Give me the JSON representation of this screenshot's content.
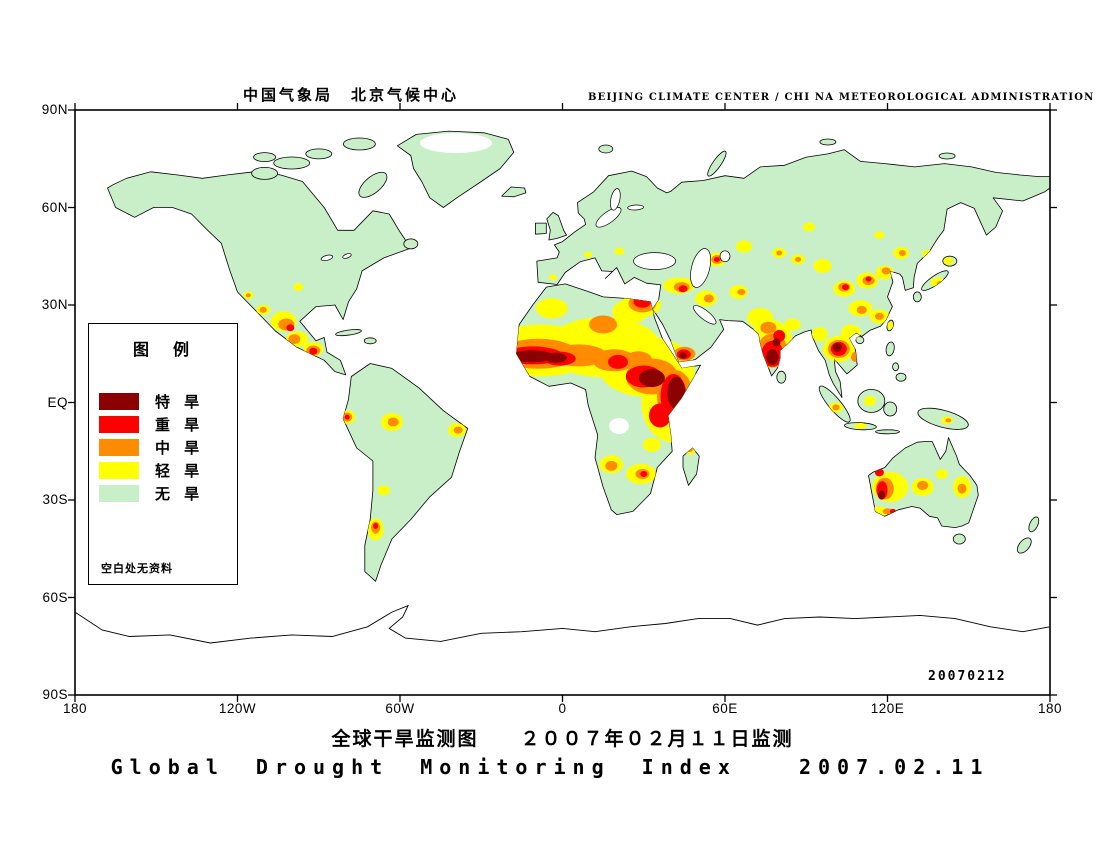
{
  "header": {
    "title_cn": "中国气象局　北京气候中心",
    "title_en": "BEIJING CLIMATE CENTER / CHI NA METEOROLOGICAL ADMINISTRATION"
  },
  "axes": {
    "lat_labels": [
      "90N",
      "60N",
      "30N",
      "EQ",
      "30S",
      "60S",
      "90S"
    ],
    "lon_labels": [
      "180",
      "120W",
      "60W",
      "0",
      "60E",
      "120E",
      "180"
    ]
  },
  "legend": {
    "title": "图　例",
    "items": [
      {
        "label": "特 旱",
        "color": "#8b0000",
        "level": 4
      },
      {
        "label": "重 旱",
        "color": "#ff0000",
        "level": 3
      },
      {
        "label": "中 旱",
        "color": "#ff8c00",
        "level": 2
      },
      {
        "label": "轻 旱",
        "color": "#ffff00",
        "level": 1
      },
      {
        "label": "无 旱",
        "color": "#c9efc9",
        "level": 0
      }
    ],
    "note": "空白处无资料"
  },
  "map": {
    "datestamp": "20070212",
    "ocean_color": "#ffffff",
    "drought_spots": [
      [
        -8,
        16,
        55,
        26,
        1
      ],
      [
        15,
        17,
        58,
        30,
        1
      ],
      [
        31,
        11,
        48,
        30,
        1
      ],
      [
        41,
        0,
        32,
        40,
        1
      ],
      [
        25,
        28,
        18,
        12,
        1
      ],
      [
        -4,
        29,
        16,
        10,
        1
      ],
      [
        29,
        30,
        20,
        12,
        1
      ],
      [
        18,
        -19,
        12,
        9,
        1
      ],
      [
        29,
        -22,
        15,
        10,
        1
      ],
      [
        47,
        -14.5,
        6,
        5,
        1
      ],
      [
        33,
        -13,
        9,
        7,
        1
      ],
      [
        43,
        36,
        16,
        8,
        1
      ],
      [
        53,
        32,
        11,
        8,
        1
      ],
      [
        65,
        34,
        9,
        7,
        1
      ],
      [
        57,
        44,
        9,
        7,
        1
      ],
      [
        67,
        48,
        8,
        6,
        1
      ],
      [
        80,
        46,
        7,
        5,
        1
      ],
      [
        77,
        18,
        22,
        24,
        1
      ],
      [
        73,
        26,
        13,
        10,
        1
      ],
      [
        85,
        24,
        8,
        6,
        1
      ],
      [
        102,
        16.5,
        16,
        13,
        1
      ],
      [
        106.5,
        21.5,
        10,
        8,
        1
      ],
      [
        95,
        21,
        8,
        7,
        1
      ],
      [
        104,
        35,
        11,
        8,
        1
      ],
      [
        112.5,
        37.5,
        11,
        8,
        1
      ],
      [
        119,
        40,
        9,
        7,
        1
      ],
      [
        96,
        42,
        9,
        7,
        1
      ],
      [
        110,
        29,
        12,
        8,
        1
      ],
      [
        117,
        26.5,
        10,
        7,
        1
      ],
      [
        125,
        46,
        8,
        6,
        1
      ],
      [
        87,
        44,
        7,
        5,
        1
      ],
      [
        91,
        54,
        6,
        4.5,
        1
      ],
      [
        135,
        45.5,
        6,
        5,
        1
      ],
      [
        117,
        51.5,
        5,
        4,
        1
      ],
      [
        138.5,
        37,
        7,
        5,
        1
      ],
      [
        142.5,
        43.5,
        5,
        4,
        1
      ],
      [
        121,
        23.7,
        3,
        4,
        1
      ],
      [
        9.5,
        45.5,
        4,
        3,
        1
      ],
      [
        21,
        46.5,
        5,
        3.5,
        1
      ],
      [
        -3.5,
        38.5,
        4,
        3,
        1
      ],
      [
        -103,
        25,
        13,
        10,
        1
      ],
      [
        -98,
        19.5,
        11,
        8,
        1
      ],
      [
        -92,
        16.5,
        10,
        7,
        1
      ],
      [
        -110.5,
        28.5,
        7,
        5,
        1
      ],
      [
        -97.5,
        35.5,
        5,
        4,
        1
      ],
      [
        -116,
        33,
        5,
        4,
        1
      ],
      [
        -79.5,
        -4.5,
        8,
        7,
        1
      ],
      [
        -63,
        -6,
        11,
        9,
        1
      ],
      [
        -39,
        -8.5,
        9,
        7,
        1
      ],
      [
        -69,
        -39,
        8,
        11,
        1
      ],
      [
        -66,
        -27,
        6,
        5,
        1
      ],
      [
        121,
        -26,
        18,
        15,
        1
      ],
      [
        133,
        -26,
        11,
        9,
        1
      ],
      [
        147.5,
        -26,
        9,
        11,
        1
      ],
      [
        117,
        -33.5,
        9,
        5,
        1
      ],
      [
        140,
        -22,
        6,
        5,
        1
      ],
      [
        101,
        -1.5,
        7,
        5,
        1
      ],
      [
        113.5,
        0.5,
        6,
        5,
        1
      ],
      [
        110,
        -7.2,
        6,
        3,
        1
      ],
      [
        142,
        -5.5,
        6,
        4,
        1
      ],
      [
        -9,
        15,
        40,
        15,
        2
      ],
      [
        6,
        14.5,
        28,
        11,
        2
      ],
      [
        19,
        13,
        22,
        11,
        2
      ],
      [
        33,
        8,
        26,
        18,
        2
      ],
      [
        41.5,
        2,
        18,
        26,
        2
      ],
      [
        15,
        24,
        14,
        9,
        2
      ],
      [
        28,
        13,
        14,
        9,
        2
      ],
      [
        29.5,
        30.5,
        14,
        9,
        2
      ],
      [
        45,
        15,
        11,
        7,
        2
      ],
      [
        18,
        -19.5,
        6,
        5,
        2
      ],
      [
        29.5,
        -22,
        7,
        5,
        2
      ],
      [
        47,
        -14.5,
        3,
        2.5,
        2
      ],
      [
        44,
        35.5,
        8,
        5,
        2
      ],
      [
        54,
        32,
        5,
        4,
        2
      ],
      [
        66,
        34,
        4,
        3,
        2
      ],
      [
        57,
        44,
        5.5,
        4.5,
        2
      ],
      [
        80,
        46,
        3,
        2.5,
        2
      ],
      [
        77.5,
        16,
        15,
        17,
        2
      ],
      [
        76,
        23,
        8,
        6,
        2
      ],
      [
        102,
        16.5,
        11,
        9,
        2
      ],
      [
        108,
        14,
        4,
        5,
        2
      ],
      [
        104,
        35.5,
        6,
        4.5,
        2
      ],
      [
        113,
        37.5,
        6,
        4.5,
        2
      ],
      [
        119.5,
        40.5,
        4.5,
        3.5,
        2
      ],
      [
        110.5,
        28.5,
        5,
        4,
        2
      ],
      [
        117,
        26.5,
        4.5,
        3.5,
        2
      ],
      [
        125.5,
        46,
        3.5,
        3,
        2
      ],
      [
        87,
        44,
        3,
        2.5,
        2
      ],
      [
        135.5,
        45.5,
        3,
        2.5,
        2
      ],
      [
        139.5,
        36.5,
        3.5,
        3,
        2
      ],
      [
        -102,
        24,
        8,
        6,
        2
      ],
      [
        -99,
        19.5,
        6,
        5,
        2
      ],
      [
        -92,
        16,
        7,
        5,
        2
      ],
      [
        -110.5,
        28.5,
        3.5,
        3,
        2
      ],
      [
        -116,
        33,
        2.5,
        2,
        2
      ],
      [
        -79.5,
        -4.5,
        5,
        4.5,
        2
      ],
      [
        -62.5,
        -6,
        5.5,
        4.5,
        2
      ],
      [
        -38.5,
        -8.5,
        4.5,
        3.5,
        2
      ],
      [
        -69,
        -38.5,
        4.5,
        6,
        2
      ],
      [
        119,
        -26.5,
        9,
        11,
        2
      ],
      [
        133,
        -25.5,
        5.5,
        4.5,
        2
      ],
      [
        147.5,
        -26.5,
        4.5,
        5,
        2
      ],
      [
        120,
        -33.5,
        5,
        3,
        2
      ],
      [
        101,
        -1.5,
        3.5,
        3,
        2
      ],
      [
        142.5,
        -5.5,
        3,
        2,
        2
      ],
      [
        -11,
        14.5,
        30,
        9,
        3
      ],
      [
        -1,
        13.5,
        16,
        7,
        3
      ],
      [
        30,
        8,
        18,
        11,
        3
      ],
      [
        41,
        2,
        13,
        22,
        3
      ],
      [
        36,
        -4,
        11,
        12,
        3
      ],
      [
        29.5,
        31,
        9,
        6,
        3
      ],
      [
        20.5,
        12.5,
        10,
        7,
        3
      ],
      [
        44.8,
        14.8,
        7,
        5,
        3
      ],
      [
        30,
        -22,
        3.5,
        3,
        3
      ],
      [
        44.5,
        35,
        4.5,
        3.5,
        3
      ],
      [
        57,
        44,
        3,
        2.5,
        3
      ],
      [
        77.5,
        15,
        11,
        13,
        3
      ],
      [
        80,
        20.5,
        6,
        6,
        3
      ],
      [
        102,
        16.5,
        8,
        7,
        3
      ],
      [
        104.5,
        35.5,
        3.5,
        3,
        3
      ],
      [
        113,
        38,
        3,
        2.5,
        3
      ],
      [
        -100.5,
        23,
        4,
        3.5,
        3
      ],
      [
        -92,
        15.8,
        4,
        3.5,
        3
      ],
      [
        -79.5,
        -4.5,
        2.5,
        2.5,
        3
      ],
      [
        -69,
        -38,
        2.5,
        3,
        3
      ],
      [
        118,
        -27,
        5.5,
        9,
        3
      ],
      [
        117,
        -21.5,
        4.5,
        4,
        3
      ],
      [
        122,
        -33.5,
        3,
        2.5,
        3
      ],
      [
        -11.5,
        14.2,
        22,
        6,
        4
      ],
      [
        -2.5,
        13.8,
        11,
        5,
        4
      ],
      [
        33,
        7.5,
        13,
        9,
        4
      ],
      [
        42,
        3,
        9,
        16,
        4
      ],
      [
        44.5,
        14.5,
        4,
        3,
        4
      ],
      [
        77.5,
        14,
        6,
        8,
        4
      ],
      [
        79,
        18.5,
        4,
        4,
        4
      ],
      [
        101.5,
        17,
        4.5,
        4.5,
        4
      ],
      [
        117.8,
        -28.5,
        3.5,
        4.5,
        4
      ]
    ]
  },
  "footer": {
    "title_cn": "全球干旱监测图　　２００７年０２月１１日监测",
    "title_en": "Global Drought Monitoring Index  2007.02.11"
  }
}
